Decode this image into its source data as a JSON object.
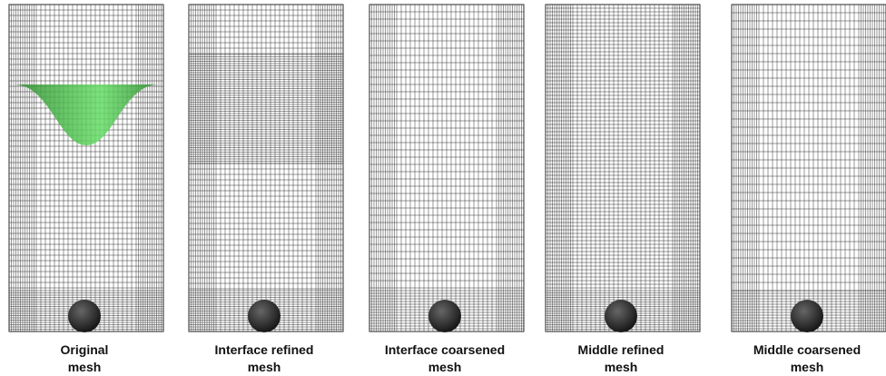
{
  "panels": [
    {
      "label": [
        "Original",
        "mesh"
      ]
    },
    {
      "label": [
        "Interface refined",
        "mesh"
      ]
    },
    {
      "label": [
        "Interface coarsened",
        "mesh"
      ]
    },
    {
      "label": [
        "Middle refined",
        "mesh"
      ]
    },
    {
      "label": [
        "Middle coarsened",
        "mesh"
      ]
    }
  ]
}
